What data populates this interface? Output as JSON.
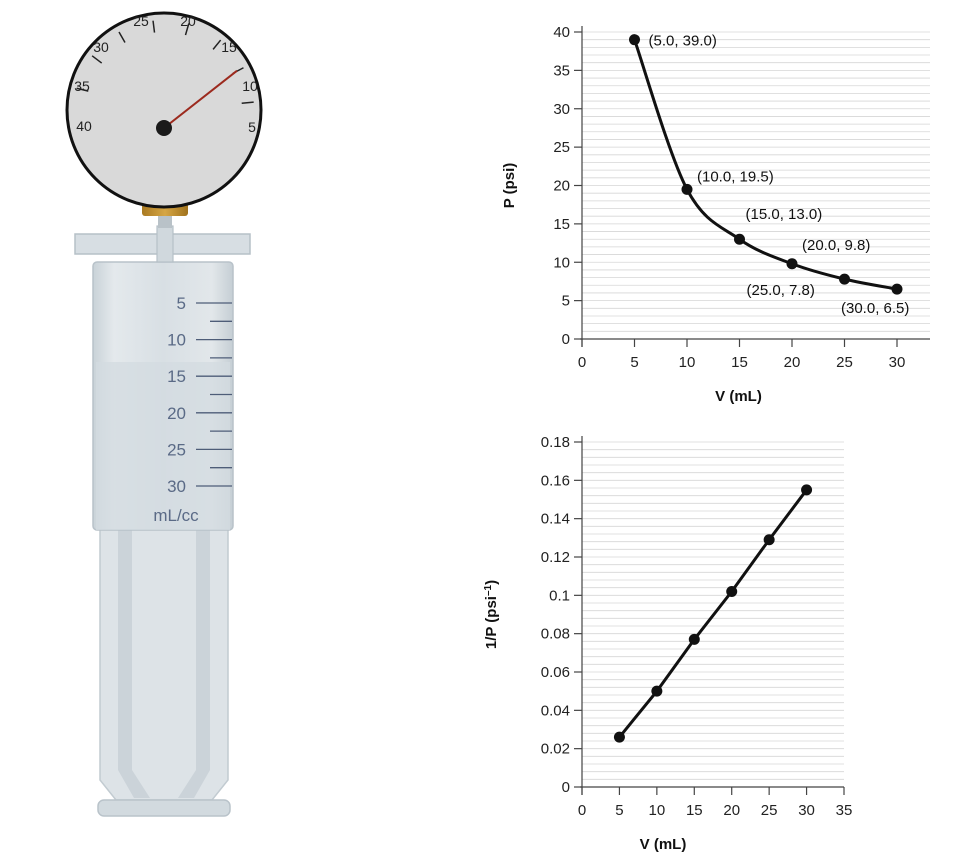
{
  "apparatus": {
    "gauge": {
      "scale_labels": [
        "25",
        "20",
        "30",
        "15",
        "35",
        "10",
        "40",
        "5"
      ],
      "needle_value": 13
    },
    "syringe": {
      "scale_labels": [
        "5",
        "10",
        "15",
        "20",
        "25",
        "30"
      ],
      "unit_label": "mL/cc"
    }
  },
  "chart_data": [
    {
      "type": "line",
      "xlabel": "V (mL)",
      "ylabel": "P (psi)",
      "xlim": [
        0,
        30
      ],
      "ylim": [
        0,
        40
      ],
      "x_ticks": [
        "0",
        "5",
        "10",
        "15",
        "20",
        "25",
        "30"
      ],
      "y_ticks": [
        "0",
        "5",
        "10",
        "15",
        "20",
        "25",
        "30",
        "35",
        "40"
      ],
      "grid": "horizontal",
      "smooth": true,
      "x": [
        5.0,
        10.0,
        15.0,
        20.0,
        25.0,
        30.0
      ],
      "y": [
        39.0,
        19.5,
        13.0,
        9.8,
        7.8,
        6.5
      ],
      "point_labels": [
        "(5.0, 39.0)",
        "(10.0, 19.5)",
        "(15.0, 13.0)",
        "(20.0, 9.8)",
        "(25.0, 7.8)",
        "(30.0, 6.5)"
      ]
    },
    {
      "type": "line",
      "xlabel": "V (mL)",
      "ylabel": "1/P (psi",
      "ylabel_sup": "–1",
      "ylabel_end": ")",
      "xlim": [
        0,
        35
      ],
      "ylim": [
        0,
        0.18
      ],
      "x_ticks": [
        "0",
        "5",
        "10",
        "15",
        "20",
        "25",
        "30",
        "35"
      ],
      "y_ticks": [
        "0",
        "0.02",
        "0.04",
        "0.06",
        "0.08",
        "0.1",
        "0.12",
        "0.14",
        "0.16",
        "0.18"
      ],
      "grid": "horizontal",
      "x": [
        5,
        10,
        15,
        20,
        25,
        30
      ],
      "y": [
        0.026,
        0.05,
        0.077,
        0.102,
        0.129,
        0.155
      ]
    }
  ]
}
